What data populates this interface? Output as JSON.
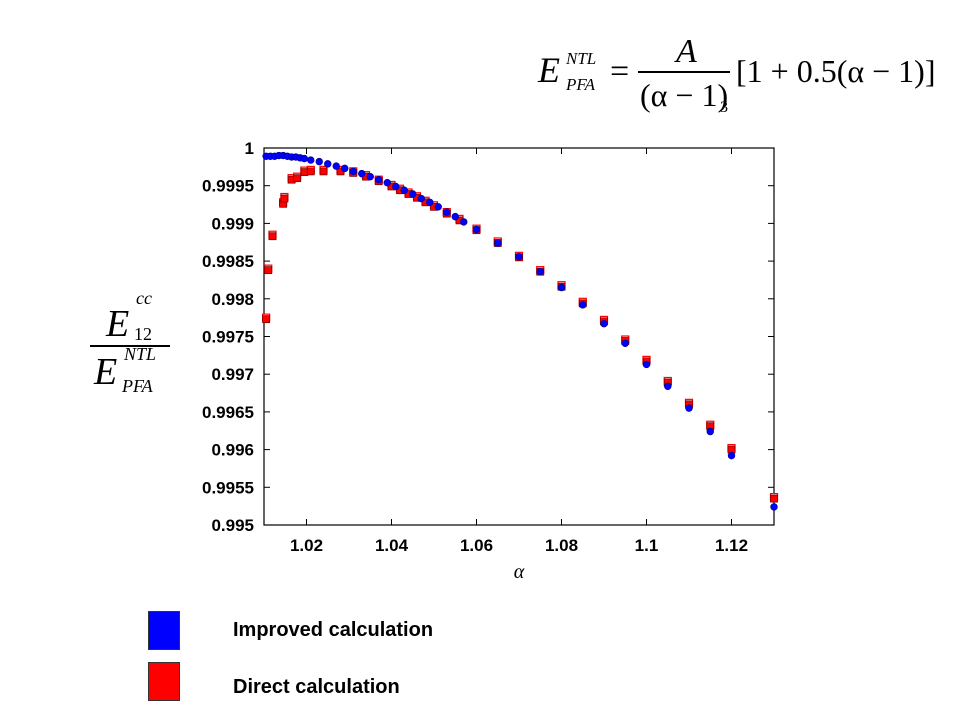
{
  "formula": {
    "lhs_base": "E",
    "lhs_sup": "NTL",
    "lhs_sub": "PFA",
    "equals": "=",
    "numerator": "A",
    "denominator": "(α − 1)",
    "denominator_power": "3",
    "bracket": "[1 + 0.5(α − 1)]"
  },
  "ylabel": {
    "num_base": "E",
    "num_sup": "cc",
    "num_sub": "12",
    "den_base": "E",
    "den_sup": "NTL",
    "den_sub": "PFA"
  },
  "legend": [
    {
      "label": "Improved calculation",
      "color": "#0000ff"
    },
    {
      "label": "Direct calculation",
      "color": "#ff0000"
    }
  ],
  "chart_data": {
    "type": "scatter",
    "xlabel": "α",
    "xlim": [
      1.01,
      1.13
    ],
    "ylim": [
      0.995,
      1.0
    ],
    "xticks": [
      1.02,
      1.04,
      1.06,
      1.08,
      1.1,
      1.12
    ],
    "xtick_labels": [
      "1.02",
      "1.04",
      "1.06",
      "1.08",
      "1.1",
      "1.12"
    ],
    "yticks": [
      0.995,
      0.9955,
      0.996,
      0.9965,
      0.997,
      0.9975,
      0.998,
      0.9985,
      0.999,
      0.9995,
      1.0
    ],
    "ytick_labels": [
      "0.995",
      "0.9955",
      "0.996",
      "0.9965",
      "0.997",
      "0.9975",
      "0.998",
      "0.9985",
      "0.999",
      "0.9995",
      "1"
    ],
    "grid": false,
    "series": [
      {
        "name": "Improved calculation",
        "color": "#0000ff",
        "marker": "circle",
        "x": [
          1.0105,
          1.0115,
          1.0125,
          1.0135,
          1.0145,
          1.0155,
          1.0165,
          1.0175,
          1.0185,
          1.0195,
          1.021,
          1.023,
          1.025,
          1.027,
          1.029,
          1.031,
          1.033,
          1.035,
          1.037,
          1.039,
          1.041,
          1.043,
          1.045,
          1.047,
          1.049,
          1.051,
          1.053,
          1.055,
          1.057,
          1.06,
          1.065,
          1.07,
          1.075,
          1.08,
          1.085,
          1.09,
          1.095,
          1.1,
          1.105,
          1.11,
          1.115,
          1.12,
          1.13
        ],
        "y": [
          0.99989,
          0.99989,
          0.99989,
          0.9999,
          0.9999,
          0.99989,
          0.99988,
          0.99988,
          0.99987,
          0.99986,
          0.99984,
          0.99982,
          0.99979,
          0.99976,
          0.99973,
          0.99969,
          0.99966,
          0.99962,
          0.99958,
          0.99954,
          0.99949,
          0.99944,
          0.99939,
          0.99933,
          0.99928,
          0.99922,
          0.99915,
          0.99909,
          0.99902,
          0.99892,
          0.99874,
          0.99856,
          0.99836,
          0.99815,
          0.99792,
          0.99767,
          0.99741,
          0.99713,
          0.99684,
          0.99655,
          0.99624,
          0.99592,
          0.99524
        ]
      },
      {
        "name": "Direct calculation",
        "color": "#ff0000",
        "marker": "square",
        "x": [
          1.0105,
          1.011,
          1.012,
          1.0145,
          1.0148,
          1.0165,
          1.0178,
          1.0195,
          1.021,
          1.024,
          1.028,
          1.031,
          1.034,
          1.037,
          1.04,
          1.042,
          1.044,
          1.046,
          1.048,
          1.05,
          1.053,
          1.056,
          1.06,
          1.065,
          1.07,
          1.075,
          1.08,
          1.085,
          1.09,
          1.095,
          1.1,
          1.105,
          1.11,
          1.115,
          1.12,
          1.13
        ],
        "y": [
          0.99775,
          0.9984,
          0.99885,
          0.99928,
          0.99935,
          0.9996,
          0.99962,
          0.9997,
          0.99971,
          0.99971,
          0.99971,
          0.99969,
          0.99964,
          0.99958,
          0.99951,
          0.99946,
          0.99941,
          0.99936,
          0.9993,
          0.99924,
          0.99915,
          0.99906,
          0.99893,
          0.99876,
          0.99857,
          0.99838,
          0.99818,
          0.99796,
          0.99772,
          0.99746,
          0.99719,
          0.99691,
          0.99662,
          0.99633,
          0.99602,
          0.99537
        ]
      }
    ]
  }
}
